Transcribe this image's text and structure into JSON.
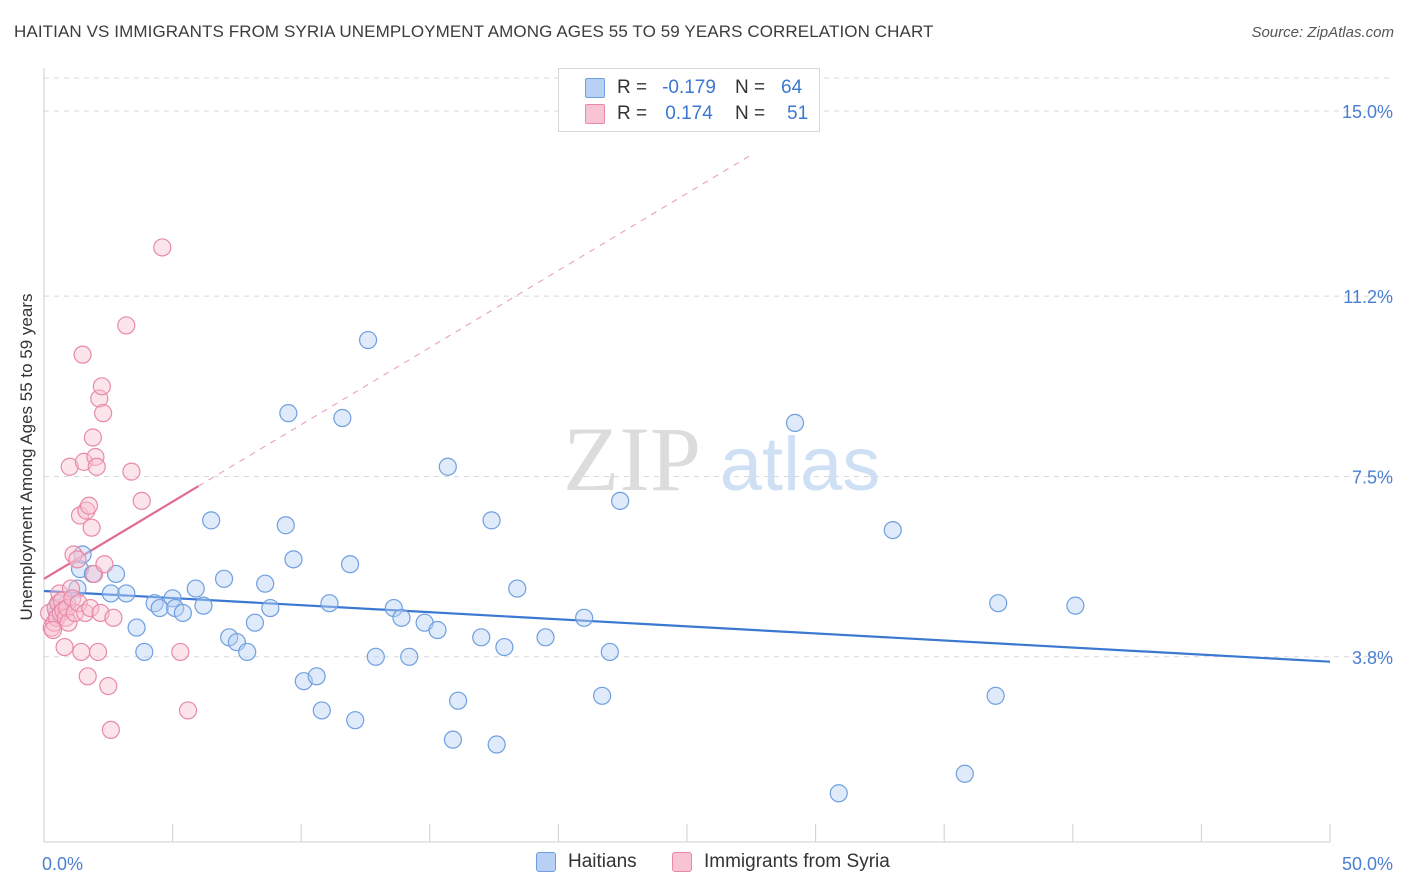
{
  "title": "HAITIAN VS IMMIGRANTS FROM SYRIA UNEMPLOYMENT AMONG AGES 55 TO 59 YEARS CORRELATION CHART",
  "source": "Source: ZipAtlas.com",
  "watermark": {
    "zip": "ZIP",
    "atlas": "atlas"
  },
  "legend_top": {
    "rows": [
      {
        "r_label": "R =",
        "r_value": "-0.179",
        "n_label": "N =",
        "n_value": "64"
      },
      {
        "r_label": "R =",
        "r_value": "0.174",
        "n_label": "N =",
        "n_value": "51"
      }
    ]
  },
  "legend_bottom": {
    "items": [
      "Haitians",
      "Immigrants from Syria"
    ]
  },
  "colors": {
    "blue_fill": "#b8d0f3",
    "blue_stroke": "#6f9fe0",
    "blue_line": "#3a78d1",
    "pink_fill": "#f8c3d3",
    "pink_stroke": "#e88aa7",
    "pink_line": "#e06c93",
    "tick_text": "#4a7fd0",
    "grid": "#d8d8d8"
  },
  "chart_data": {
    "type": "scatter",
    "ylabel": "Unemployment Among Ages 55 to 59 years",
    "xlim": [
      0,
      50
    ],
    "ylim": [
      0,
      15.8
    ],
    "x_tick_labels": [
      "0.0%",
      "50.0%"
    ],
    "y_ticks": [
      3.8,
      7.5,
      11.2,
      15.0
    ],
    "y_tick_labels": [
      "3.8%",
      "7.5%",
      "11.2%",
      "15.0%"
    ],
    "grid": "horizontal dashed",
    "series": [
      {
        "name": "Haitians",
        "color": "blue",
        "trend": {
          "x": [
            0,
            50
          ],
          "y": [
            5.15,
            3.7
          ],
          "style": "solid"
        },
        "points": [
          [
            0.6,
            4.9
          ],
          [
            0.9,
            4.9
          ],
          [
            1.3,
            5.2
          ],
          [
            1.4,
            5.6
          ],
          [
            1.5,
            5.9
          ],
          [
            1.9,
            5.5
          ],
          [
            2.6,
            5.1
          ],
          [
            2.8,
            5.5
          ],
          [
            3.2,
            5.1
          ],
          [
            3.6,
            4.4
          ],
          [
            3.9,
            3.9
          ],
          [
            4.3,
            4.9
          ],
          [
            4.5,
            4.8
          ],
          [
            5.0,
            5.0
          ],
          [
            5.1,
            4.8
          ],
          [
            5.4,
            4.7
          ],
          [
            5.9,
            5.2
          ],
          [
            6.2,
            4.85
          ],
          [
            6.5,
            6.6
          ],
          [
            7.0,
            5.4
          ],
          [
            7.2,
            4.2
          ],
          [
            7.5,
            4.1
          ],
          [
            7.9,
            3.9
          ],
          [
            8.2,
            4.5
          ],
          [
            8.6,
            5.3
          ],
          [
            8.8,
            4.8
          ],
          [
            9.4,
            6.5
          ],
          [
            9.5,
            8.8
          ],
          [
            9.7,
            5.8
          ],
          [
            10.1,
            3.3
          ],
          [
            10.6,
            3.4
          ],
          [
            10.8,
            2.7
          ],
          [
            11.1,
            4.9
          ],
          [
            11.6,
            8.7
          ],
          [
            11.9,
            5.7
          ],
          [
            12.1,
            2.5
          ],
          [
            12.6,
            10.3
          ],
          [
            12.9,
            3.8
          ],
          [
            13.6,
            4.8
          ],
          [
            13.9,
            4.6
          ],
          [
            14.2,
            3.8
          ],
          [
            14.8,
            4.5
          ],
          [
            15.3,
            4.35
          ],
          [
            15.7,
            7.7
          ],
          [
            15.9,
            2.1
          ],
          [
            16.1,
            2.9
          ],
          [
            17.0,
            4.2
          ],
          [
            17.4,
            6.6
          ],
          [
            17.6,
            2.0
          ],
          [
            17.9,
            4.0
          ],
          [
            18.4,
            5.2
          ],
          [
            19.5,
            4.2
          ],
          [
            21.0,
            4.6
          ],
          [
            21.7,
            3.0
          ],
          [
            22.0,
            3.9
          ],
          [
            22.4,
            7.0
          ],
          [
            29.2,
            8.6
          ],
          [
            30.9,
            1.0
          ],
          [
            33.0,
            6.4
          ],
          [
            35.8,
            1.4
          ],
          [
            37.0,
            3.0
          ],
          [
            37.1,
            4.9
          ],
          [
            40.1,
            4.85
          ],
          [
            0.5,
            4.7
          ]
        ]
      },
      {
        "name": "Immigrants from Syria",
        "color": "pink",
        "trend": {
          "x": [
            0,
            6.0
          ],
          "y": [
            5.4,
            7.3
          ],
          "dashed_x": [
            6.0,
            27.5
          ],
          "dashed_y": [
            7.3,
            14.1
          ]
        },
        "points": [
          [
            0.2,
            4.7
          ],
          [
            0.3,
            4.4
          ],
          [
            0.4,
            4.5
          ],
          [
            0.45,
            4.8
          ],
          [
            0.5,
            4.6
          ],
          [
            0.55,
            4.9
          ],
          [
            0.6,
            5.1
          ],
          [
            0.65,
            4.7
          ],
          [
            0.7,
            4.95
          ],
          [
            0.75,
            4.75
          ],
          [
            0.8,
            4.0
          ],
          [
            0.85,
            4.6
          ],
          [
            0.9,
            4.8
          ],
          [
            0.95,
            4.5
          ],
          [
            1.0,
            7.7
          ],
          [
            1.05,
            5.2
          ],
          [
            1.1,
            5.0
          ],
          [
            1.15,
            5.9
          ],
          [
            1.2,
            4.7
          ],
          [
            1.3,
            5.8
          ],
          [
            1.35,
            4.9
          ],
          [
            1.4,
            6.7
          ],
          [
            1.45,
            3.9
          ],
          [
            1.5,
            10.0
          ],
          [
            1.55,
            7.8
          ],
          [
            1.6,
            4.7
          ],
          [
            1.65,
            6.8
          ],
          [
            1.7,
            3.4
          ],
          [
            1.75,
            6.9
          ],
          [
            1.8,
            4.8
          ],
          [
            1.85,
            6.45
          ],
          [
            1.9,
            8.3
          ],
          [
            1.95,
            5.5
          ],
          [
            2.0,
            7.9
          ],
          [
            2.05,
            7.7
          ],
          [
            2.1,
            3.9
          ],
          [
            2.15,
            9.1
          ],
          [
            2.2,
            4.7
          ],
          [
            2.25,
            9.35
          ],
          [
            2.3,
            8.8
          ],
          [
            2.35,
            5.7
          ],
          [
            2.5,
            3.2
          ],
          [
            2.6,
            2.3
          ],
          [
            2.7,
            4.6
          ],
          [
            3.2,
            10.6
          ],
          [
            3.4,
            7.6
          ],
          [
            3.8,
            7.0
          ],
          [
            4.6,
            12.2
          ],
          [
            5.3,
            3.9
          ],
          [
            5.6,
            2.7
          ],
          [
            0.35,
            4.35
          ]
        ]
      }
    ]
  }
}
